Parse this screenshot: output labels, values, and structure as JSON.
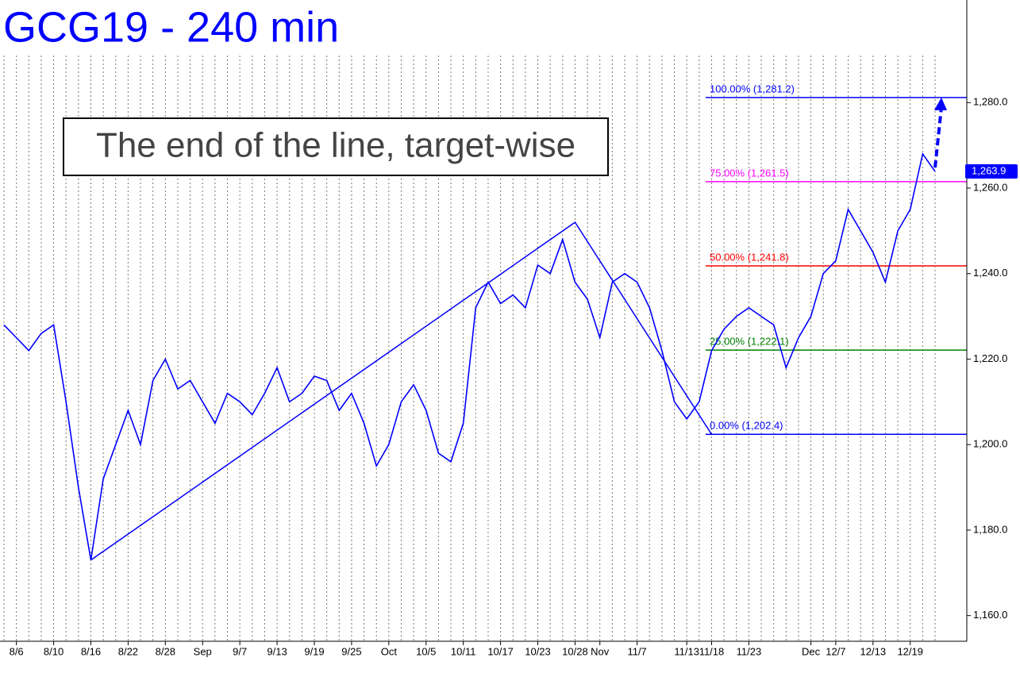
{
  "chart_data": {
    "type": "line",
    "title": "GCG19 - 240 min",
    "annotation": "The end of the line, target-wise",
    "categories": [
      null,
      "8/6",
      null,
      null,
      "8/10",
      null,
      null,
      "8/16",
      null,
      null,
      "8/22",
      null,
      null,
      "8/28",
      null,
      null,
      "Sep",
      null,
      null,
      "9/7",
      null,
      null,
      "9/13",
      null,
      null,
      "9/19",
      null,
      null,
      "9/25",
      null,
      null,
      "Oct",
      null,
      null,
      "10/5",
      null,
      null,
      "10/11",
      null,
      null,
      "10/17",
      null,
      null,
      "10/23",
      null,
      null,
      "10/28",
      null,
      "Nov",
      null,
      null,
      "11/7",
      null,
      null,
      null,
      "11/13",
      null,
      "11/18",
      null,
      null,
      "11/23",
      null,
      null,
      null,
      null,
      "Dec",
      null,
      "12/7",
      null,
      null,
      "12/13",
      null,
      null,
      "12/19",
      null,
      null
    ],
    "series": [
      {
        "name": "GCG19",
        "color": "#0000ff",
        "values": [
          1228,
          1225,
          1222,
          1226,
          1228,
          1210,
          1190,
          1173,
          1192,
          1200,
          1208,
          1200,
          1215,
          1220,
          1213,
          1215,
          1210,
          1205,
          1212,
          1210,
          1207,
          1212,
          1218,
          1210,
          1212,
          1216,
          1215,
          1208,
          1212,
          1205,
          1195,
          1200,
          1210,
          1214,
          1208,
          1198,
          1196,
          1205,
          1232,
          1238,
          1233,
          1235,
          1232,
          1242,
          1240,
          1248,
          1238,
          1234,
          1225,
          1238,
          1240,
          1238,
          1232,
          1222,
          1210,
          1206,
          1210,
          1222,
          1227,
          1230,
          1232,
          1230,
          1228,
          1218,
          1225,
          1230,
          1240,
          1243,
          1255,
          1250,
          1245,
          1238,
          1250,
          1255,
          1268,
          1263.9
        ]
      }
    ],
    "trendline": {
      "color": "#0000ff",
      "values": [
        1173,
        1252,
        1202.4
      ]
    },
    "levels": [
      {
        "label": "100.00% (1,281.2)",
        "value": 1281.2,
        "color": "#0000ff"
      },
      {
        "label": "75.00% (1,261.5)",
        "value": 1261.5,
        "color": "#ff00ff"
      },
      {
        "label": "50.00% (1,241.8)",
        "value": 1241.8,
        "color": "#ff0000"
      },
      {
        "label": "25.00% (1,222.1)",
        "value": 1222.1,
        "color": "#008000"
      },
      {
        "label": "0.00% (1,202.4)",
        "value": 1202.4,
        "color": "#0000ff"
      }
    ],
    "last_price": {
      "value": 1263.9,
      "label": "1,263.9"
    },
    "ylim": [
      1154,
      1304
    ],
    "yticks": [
      {
        "value": 1160,
        "label": "1,160.0"
      },
      {
        "value": 1180,
        "label": "1,180.0"
      },
      {
        "value": 1200,
        "label": "1,200.0"
      },
      {
        "value": 1220,
        "label": "1,220.0"
      },
      {
        "value": 1240,
        "label": "1,240.0"
      },
      {
        "value": 1260,
        "label": "1,260.0"
      },
      {
        "value": 1280,
        "label": "1,280.0"
      }
    ],
    "grid": true
  }
}
